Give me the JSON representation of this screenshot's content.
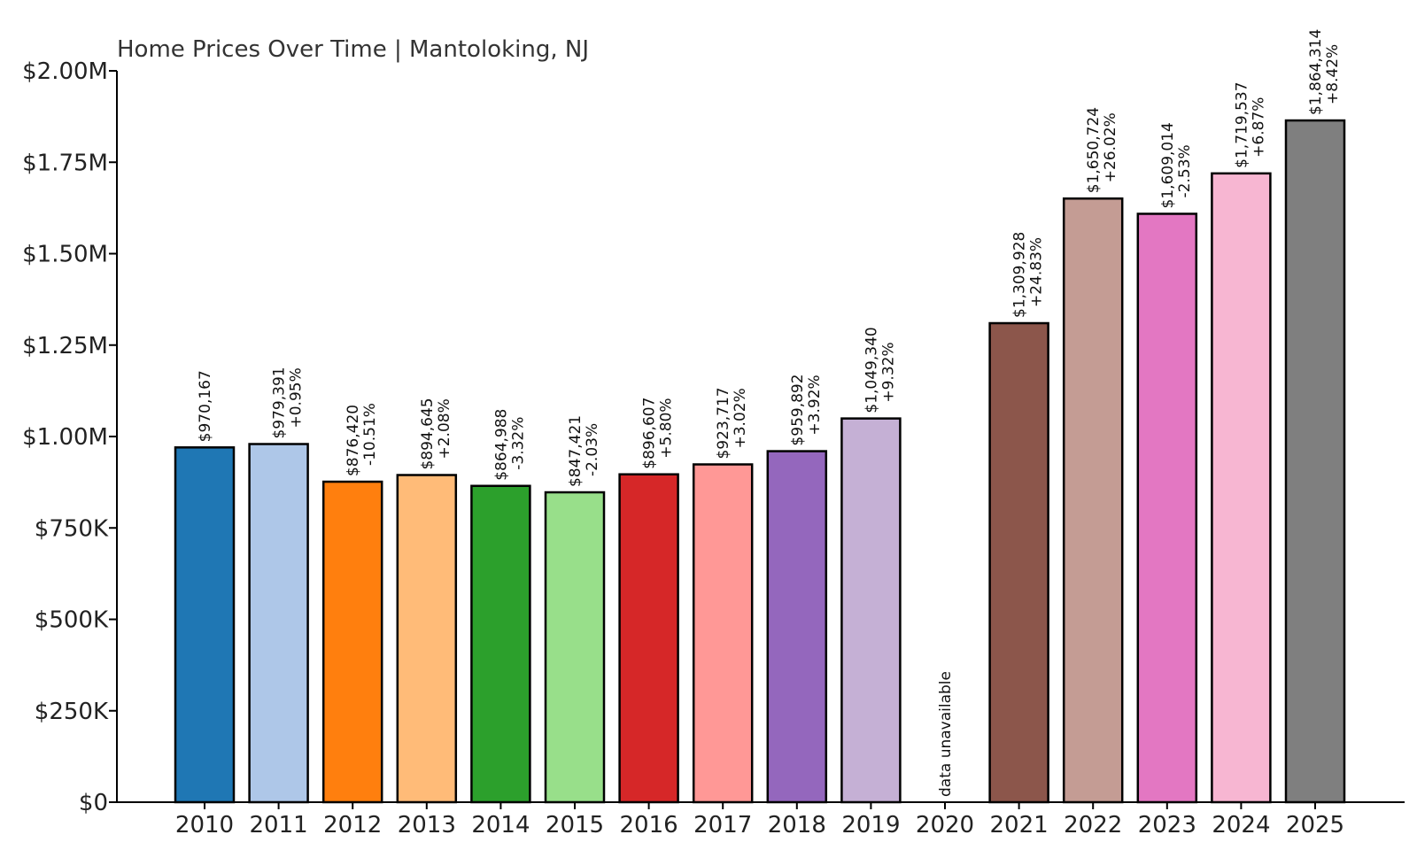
{
  "chart_data": {
    "type": "bar",
    "title": "Home Prices Over Time | Mantoloking, NJ",
    "xlabel": "",
    "ylabel": "",
    "ylim": [
      0,
      2000000
    ],
    "yticks": [
      {
        "value": 0,
        "label": "$0"
      },
      {
        "value": 250000,
        "label": "$250K"
      },
      {
        "value": 500000,
        "label": "$500K"
      },
      {
        "value": 750000,
        "label": "$750K"
      },
      {
        "value": 1000000,
        "label": "$1.00M"
      },
      {
        "value": 1250000,
        "label": "$1.25M"
      },
      {
        "value": 1500000,
        "label": "$1.50M"
      },
      {
        "value": 1750000,
        "label": "$1.75M"
      },
      {
        "value": 2000000,
        "label": "$2.00M"
      }
    ],
    "categories": [
      "2010",
      "2011",
      "2012",
      "2013",
      "2014",
      "2015",
      "2016",
      "2017",
      "2018",
      "2019",
      "2020",
      "2021",
      "2022",
      "2023",
      "2024",
      "2025"
    ],
    "values": [
      970167,
      979391,
      876420,
      894645,
      864988,
      847421,
      896607,
      923717,
      959892,
      1049340,
      null,
      1309928,
      1650724,
      1609014,
      1719537,
      1864314
    ],
    "value_labels": [
      "$970,167",
      "$979,391",
      "$876,420",
      "$894,645",
      "$864,988",
      "$847,421",
      "$896,607",
      "$923,717",
      "$959,892",
      "$1,049,340",
      "",
      "$1,309,928",
      "$1,650,724",
      "$1,609,014",
      "$1,719,537",
      "$1,864,314"
    ],
    "change_labels": [
      "",
      "+0.95%",
      "-10.51%",
      "+2.08%",
      "-3.32%",
      "-2.03%",
      "+5.80%",
      "+3.02%",
      "+3.92%",
      "+9.32%",
      "",
      "+24.83%",
      "+26.02%",
      "-2.53%",
      "+6.87%",
      "+8.42%"
    ],
    "missing_label": "data unavailable",
    "colors": [
      "#1f77b4",
      "#aec7e8",
      "#ff7f0e",
      "#ffbb78",
      "#2ca02c",
      "#98df8a",
      "#d62728",
      "#ff9896",
      "#9467bd",
      "#c5b0d5",
      "#8c564b",
      "#8c564b",
      "#c49c94",
      "#e377c2",
      "#f7b6d2",
      "#7f7f7f"
    ],
    "grid": false,
    "legend": "none"
  }
}
